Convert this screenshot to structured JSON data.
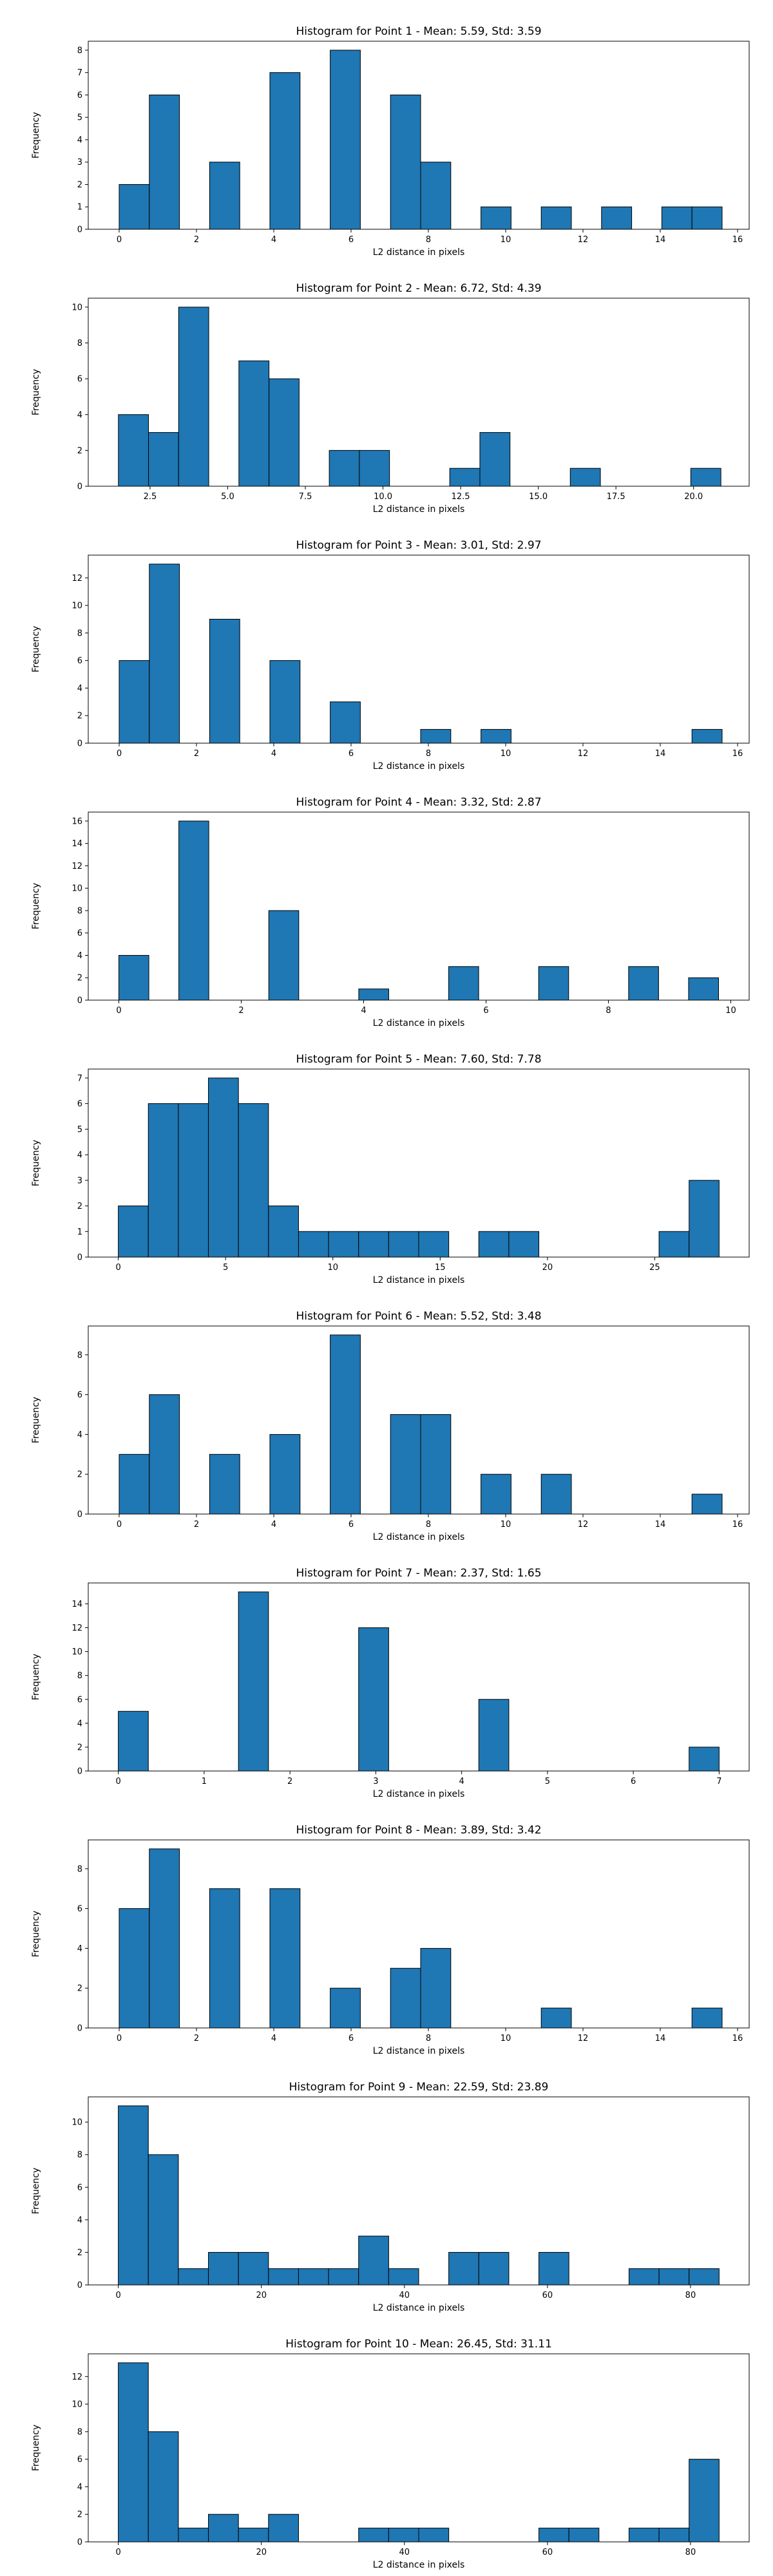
{
  "colors": {
    "bar": "#1f77b4",
    "edge": "#000000",
    "background": "#ffffff"
  },
  "chart_data": [
    {
      "type": "bar",
      "title": "Histogram for Point 1 - Mean: 5.59, Std: 3.59",
      "xlabel": "L2 distance in pixels",
      "ylabel": "Frequency",
      "xlim": [
        -0.8,
        16.3
      ],
      "ylim": [
        0,
        8.4
      ],
      "xticks": [
        0,
        2,
        4,
        6,
        8,
        10,
        12,
        14,
        16
      ],
      "xtick_labels": [
        "0",
        "2",
        "4",
        "6",
        "8",
        "10",
        "12",
        "14",
        "16"
      ],
      "yticks": [
        0,
        1,
        2,
        3,
        4,
        5,
        6,
        7,
        8
      ],
      "ytick_labels": [
        "0",
        "1",
        "2",
        "3",
        "4",
        "5",
        "6",
        "7",
        "8"
      ],
      "bin_edges": [
        0.0,
        0.78,
        1.56,
        2.34,
        3.12,
        3.9,
        4.68,
        5.46,
        6.24,
        7.02,
        7.8,
        8.58,
        9.36,
        10.14,
        10.92,
        11.7,
        12.48,
        13.26,
        14.04,
        14.82,
        15.6
      ],
      "values": [
        2,
        6,
        0,
        3,
        0,
        7,
        0,
        8,
        0,
        6,
        3,
        0,
        1,
        0,
        1,
        0,
        1,
        0,
        1,
        1
      ]
    },
    {
      "type": "bar",
      "title": "Histogram for Point 2 - Mean: 6.72, Std: 4.39",
      "xlabel": "L2 distance in pixels",
      "ylabel": "Frequency",
      "xlim": [
        0.51,
        21.79
      ],
      "ylim": [
        0,
        10.5
      ],
      "xticks": [
        2.5,
        5.0,
        7.5,
        10.0,
        12.5,
        15.0,
        17.5,
        20.0
      ],
      "xtick_labels": [
        "2.5",
        "5.0",
        "7.5",
        "10.0",
        "12.5",
        "15.0",
        "17.5",
        "20.0"
      ],
      "yticks": [
        0,
        2,
        4,
        6,
        8,
        10
      ],
      "ytick_labels": [
        "0",
        "2",
        "4",
        "6",
        "8",
        "10"
      ],
      "bin_edges": [
        1.48,
        2.45,
        3.42,
        4.39,
        5.36,
        6.33,
        7.3,
        8.27,
        9.24,
        10.21,
        11.18,
        12.15,
        13.12,
        14.09,
        15.06,
        16.03,
        17.0,
        17.97,
        18.94,
        19.91,
        20.88
      ],
      "values": [
        4,
        3,
        10,
        0,
        7,
        6,
        0,
        2,
        2,
        0,
        0,
        1,
        3,
        0,
        0,
        1,
        0,
        0,
        0,
        1
      ]
    },
    {
      "type": "bar",
      "title": "Histogram for Point 3 - Mean: 3.01, Std: 2.97",
      "xlabel": "L2 distance in pixels",
      "ylabel": "Frequency",
      "xlim": [
        -0.8,
        16.3
      ],
      "ylim": [
        0,
        13.65
      ],
      "xticks": [
        0,
        2,
        4,
        6,
        8,
        10,
        12,
        14,
        16
      ],
      "xtick_labels": [
        "0",
        "2",
        "4",
        "6",
        "8",
        "10",
        "12",
        "14",
        "16"
      ],
      "yticks": [
        0,
        2,
        4,
        6,
        8,
        10,
        12
      ],
      "ytick_labels": [
        "0",
        "2",
        "4",
        "6",
        "8",
        "10",
        "12"
      ],
      "bin_edges": [
        0.0,
        0.78,
        1.56,
        2.34,
        3.12,
        3.9,
        4.68,
        5.46,
        6.24,
        7.02,
        7.8,
        8.58,
        9.36,
        10.14,
        10.92,
        11.7,
        12.48,
        13.26,
        14.04,
        14.82,
        15.6
      ],
      "values": [
        6,
        13,
        0,
        9,
        0,
        6,
        0,
        3,
        0,
        0,
        1,
        0,
        1,
        0,
        0,
        0,
        0,
        0,
        0,
        1
      ]
    },
    {
      "type": "bar",
      "title": "Histogram for Point 4 - Mean: 3.32, Std: 2.87",
      "xlabel": "L2 distance in pixels",
      "ylabel": "Frequency",
      "xlim": [
        -0.5,
        10.3
      ],
      "ylim": [
        0,
        16.8
      ],
      "xticks": [
        0,
        2,
        4,
        6,
        8,
        10
      ],
      "xtick_labels": [
        "0",
        "2",
        "4",
        "6",
        "8",
        "10"
      ],
      "yticks": [
        0,
        2,
        4,
        6,
        8,
        10,
        12,
        14,
        16
      ],
      "ytick_labels": [
        "0",
        "2",
        "4",
        "6",
        "8",
        "10",
        "12",
        "14",
        "16"
      ],
      "bin_edges": [
        0.0,
        0.49,
        0.98,
        1.47,
        1.96,
        2.45,
        2.94,
        3.43,
        3.92,
        4.41,
        4.9,
        5.39,
        5.88,
        6.37,
        6.86,
        7.35,
        7.84,
        8.33,
        8.82,
        9.31,
        9.8
      ],
      "values": [
        4,
        0,
        16,
        0,
        0,
        8,
        0,
        0,
        1,
        0,
        0,
        3,
        0,
        0,
        3,
        0,
        0,
        3,
        0,
        2
      ]
    },
    {
      "type": "bar",
      "title": "Histogram for Point 5 - Mean: 7.60, Std: 7.78",
      "xlabel": "L2 distance in pixels",
      "ylabel": "Frequency",
      "xlim": [
        -1.4,
        29.4
      ],
      "ylim": [
        0,
        7.35
      ],
      "xticks": [
        0,
        5,
        10,
        15,
        20,
        25
      ],
      "xtick_labels": [
        "0",
        "5",
        "10",
        "15",
        "20",
        "25"
      ],
      "yticks": [
        0,
        1,
        2,
        3,
        4,
        5,
        6,
        7
      ],
      "ytick_labels": [
        "0",
        "1",
        "2",
        "3",
        "4",
        "5",
        "6",
        "7"
      ],
      "bin_edges": [
        0.0,
        1.4,
        2.8,
        4.2,
        5.6,
        7.0,
        8.4,
        9.8,
        11.2,
        12.6,
        14.0,
        15.4,
        16.8,
        18.2,
        19.6,
        21.0,
        22.4,
        23.8,
        25.2,
        26.6,
        28.0
      ],
      "values": [
        2,
        6,
        6,
        7,
        6,
        2,
        1,
        1,
        1,
        1,
        1,
        0,
        1,
        1,
        0,
        0,
        0,
        0,
        1,
        3
      ]
    },
    {
      "type": "bar",
      "title": "Histogram for Point 6 - Mean: 5.52, Std: 3.48",
      "xlabel": "L2 distance in pixels",
      "ylabel": "Frequency",
      "xlim": [
        -0.8,
        16.3
      ],
      "ylim": [
        0,
        9.45
      ],
      "xticks": [
        0,
        2,
        4,
        6,
        8,
        10,
        12,
        14,
        16
      ],
      "xtick_labels": [
        "0",
        "2",
        "4",
        "6",
        "8",
        "10",
        "12",
        "14",
        "16"
      ],
      "yticks": [
        0,
        2,
        4,
        6,
        8
      ],
      "ytick_labels": [
        "0",
        "2",
        "4",
        "6",
        "8"
      ],
      "bin_edges": [
        0.0,
        0.78,
        1.56,
        2.34,
        3.12,
        3.9,
        4.68,
        5.46,
        6.24,
        7.02,
        7.8,
        8.58,
        9.36,
        10.14,
        10.92,
        11.7,
        12.48,
        13.26,
        14.04,
        14.82,
        15.6
      ],
      "values": [
        3,
        6,
        0,
        3,
        0,
        4,
        0,
        9,
        0,
        5,
        5,
        0,
        2,
        0,
        2,
        0,
        0,
        0,
        0,
        1
      ]
    },
    {
      "type": "bar",
      "title": "Histogram for Point 7 - Mean: 2.37, Std: 1.65",
      "xlabel": "L2 distance in pixels",
      "ylabel": "Frequency",
      "xlim": [
        -0.35,
        7.35
      ],
      "ylim": [
        0,
        15.75
      ],
      "xticks": [
        0,
        1,
        2,
        3,
        4,
        5,
        6,
        7
      ],
      "xtick_labels": [
        "0",
        "1",
        "2",
        "3",
        "4",
        "5",
        "6",
        "7"
      ],
      "yticks": [
        0,
        2,
        4,
        6,
        8,
        10,
        12,
        14
      ],
      "ytick_labels": [
        "0",
        "2",
        "4",
        "6",
        "8",
        "10",
        "12",
        "14"
      ],
      "bin_edges": [
        0.0,
        0.35,
        0.7,
        1.05,
        1.4,
        1.75,
        2.1,
        2.45,
        2.8,
        3.15,
        3.5,
        3.85,
        4.2,
        4.55,
        4.9,
        5.25,
        5.6,
        5.95,
        6.3,
        6.65,
        7.0
      ],
      "values": [
        5,
        0,
        0,
        0,
        15,
        0,
        0,
        0,
        12,
        0,
        0,
        0,
        6,
        0,
        0,
        0,
        0,
        0,
        0,
        2
      ]
    },
    {
      "type": "bar",
      "title": "Histogram for Point 8 - Mean: 3.89, Std: 3.42",
      "xlabel": "L2 distance in pixels",
      "ylabel": "Frequency",
      "xlim": [
        -0.8,
        16.3
      ],
      "ylim": [
        0,
        9.45
      ],
      "xticks": [
        0,
        2,
        4,
        6,
        8,
        10,
        12,
        14,
        16
      ],
      "xtick_labels": [
        "0",
        "2",
        "4",
        "6",
        "8",
        "10",
        "12",
        "14",
        "16"
      ],
      "yticks": [
        0,
        2,
        4,
        6,
        8
      ],
      "ytick_labels": [
        "0",
        "2",
        "4",
        "6",
        "8"
      ],
      "bin_edges": [
        0.0,
        0.78,
        1.56,
        2.34,
        3.12,
        3.9,
        4.68,
        5.46,
        6.24,
        7.02,
        7.8,
        8.58,
        9.36,
        10.14,
        10.92,
        11.7,
        12.48,
        13.26,
        14.04,
        14.82,
        15.6
      ],
      "values": [
        6,
        9,
        0,
        7,
        0,
        7,
        0,
        2,
        0,
        3,
        4,
        0,
        0,
        0,
        1,
        0,
        0,
        0,
        0,
        1
      ]
    },
    {
      "type": "bar",
      "title": "Histogram for Point 9 - Mean: 22.59, Std: 23.89",
      "xlabel": "L2 distance in pixels",
      "ylabel": "Frequency",
      "xlim": [
        -4.2,
        88.2
      ],
      "ylim": [
        0,
        11.55
      ],
      "xticks": [
        0,
        20,
        40,
        60,
        80
      ],
      "xtick_labels": [
        "0",
        "20",
        "40",
        "60",
        "80"
      ],
      "yticks": [
        0,
        2,
        4,
        6,
        8,
        10
      ],
      "ytick_labels": [
        "0",
        "2",
        "4",
        "6",
        "8",
        "10"
      ],
      "bin_edges": [
        0.0,
        4.2,
        8.4,
        12.6,
        16.8,
        21.0,
        25.2,
        29.4,
        33.6,
        37.8,
        42.0,
        46.2,
        50.4,
        54.6,
        58.8,
        63.0,
        67.2,
        71.4,
        75.6,
        79.8,
        84.0
      ],
      "values": [
        11,
        8,
        1,
        2,
        2,
        1,
        1,
        1,
        3,
        1,
        0,
        2,
        2,
        0,
        2,
        0,
        0,
        1,
        1,
        1
      ]
    },
    {
      "type": "bar",
      "title": "Histogram for Point 10 - Mean: 26.45, Std: 31.11",
      "xlabel": "L2 distance in pixels",
      "ylabel": "Frequency",
      "xlim": [
        -4.2,
        88.2
      ],
      "ylim": [
        0,
        13.65
      ],
      "xticks": [
        0,
        20,
        40,
        60,
        80
      ],
      "xtick_labels": [
        "0",
        "20",
        "40",
        "60",
        "80"
      ],
      "yticks": [
        0,
        2,
        4,
        6,
        8,
        10,
        12
      ],
      "ytick_labels": [
        "0",
        "2",
        "4",
        "6",
        "8",
        "10",
        "12"
      ],
      "bin_edges": [
        0.0,
        4.2,
        8.4,
        12.6,
        16.8,
        21.0,
        25.2,
        29.4,
        33.6,
        37.8,
        42.0,
        46.2,
        50.4,
        54.6,
        58.8,
        63.0,
        67.2,
        71.4,
        75.6,
        79.8,
        84.0
      ],
      "values": [
        13,
        8,
        1,
        2,
        1,
        2,
        0,
        0,
        1,
        1,
        1,
        0,
        0,
        0,
        1,
        1,
        0,
        1,
        1,
        6
      ]
    }
  ]
}
